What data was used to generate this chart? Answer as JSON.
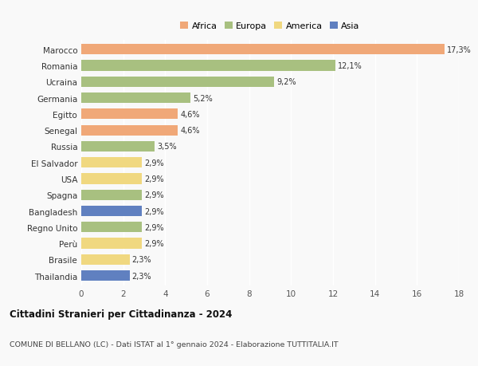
{
  "countries": [
    "Marocco",
    "Romania",
    "Ucraina",
    "Germania",
    "Egitto",
    "Senegal",
    "Russia",
    "El Salvador",
    "USA",
    "Spagna",
    "Bangladesh",
    "Regno Unito",
    "Perù",
    "Brasile",
    "Thailandia"
  ],
  "values": [
    17.3,
    12.1,
    9.2,
    5.2,
    4.6,
    4.6,
    3.5,
    2.9,
    2.9,
    2.9,
    2.9,
    2.9,
    2.9,
    2.3,
    2.3
  ],
  "labels": [
    "17,3%",
    "12,1%",
    "9,2%",
    "5,2%",
    "4,6%",
    "4,6%",
    "3,5%",
    "2,9%",
    "2,9%",
    "2,9%",
    "2,9%",
    "2,9%",
    "2,9%",
    "2,3%",
    "2,3%"
  ],
  "continents": [
    "Africa",
    "Europa",
    "Europa",
    "Europa",
    "Africa",
    "Africa",
    "Europa",
    "America",
    "America",
    "Europa",
    "Asia",
    "Europa",
    "America",
    "America",
    "Asia"
  ],
  "colors": {
    "Africa": "#F0A878",
    "Europa": "#A8C080",
    "America": "#F0D880",
    "Asia": "#6080C0"
  },
  "legend_order": [
    "Africa",
    "Europa",
    "America",
    "Asia"
  ],
  "xlim": [
    0,
    18
  ],
  "xticks": [
    0,
    2,
    4,
    6,
    8,
    10,
    12,
    14,
    16,
    18
  ],
  "title": "Cittadini Stranieri per Cittadinanza - 2024",
  "subtitle": "COMUNE DI BELLANO (LC) - Dati ISTAT al 1° gennaio 2024 - Elaborazione TUTTITALIA.IT",
  "bg_color": "#f9f9f9",
  "bar_height": 0.65
}
